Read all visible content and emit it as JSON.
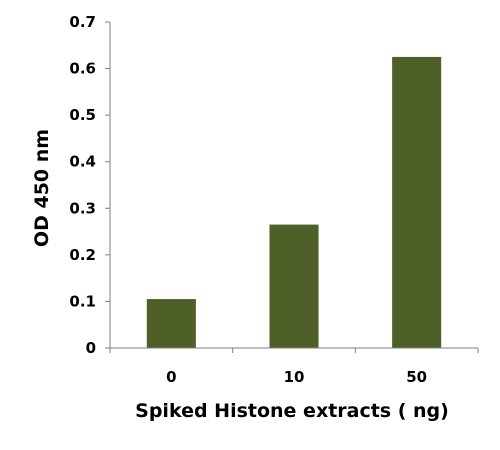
{
  "chart_data": {
    "type": "bar",
    "categories": [
      "0",
      "10",
      "50"
    ],
    "values": [
      0.105,
      0.265,
      0.625
    ],
    "bar_color": "#4f5f28",
    "xlabel": "Spiked Histone  extracts ( ng)",
    "ylabel": "OD 450 nm",
    "ylim": [
      0,
      0.7
    ],
    "yticks": [
      "0",
      "0.1",
      "0.2",
      "0.3",
      "0.4",
      "0.5",
      "0.6",
      "0.7"
    ],
    "grid": false,
    "legend": "none"
  }
}
